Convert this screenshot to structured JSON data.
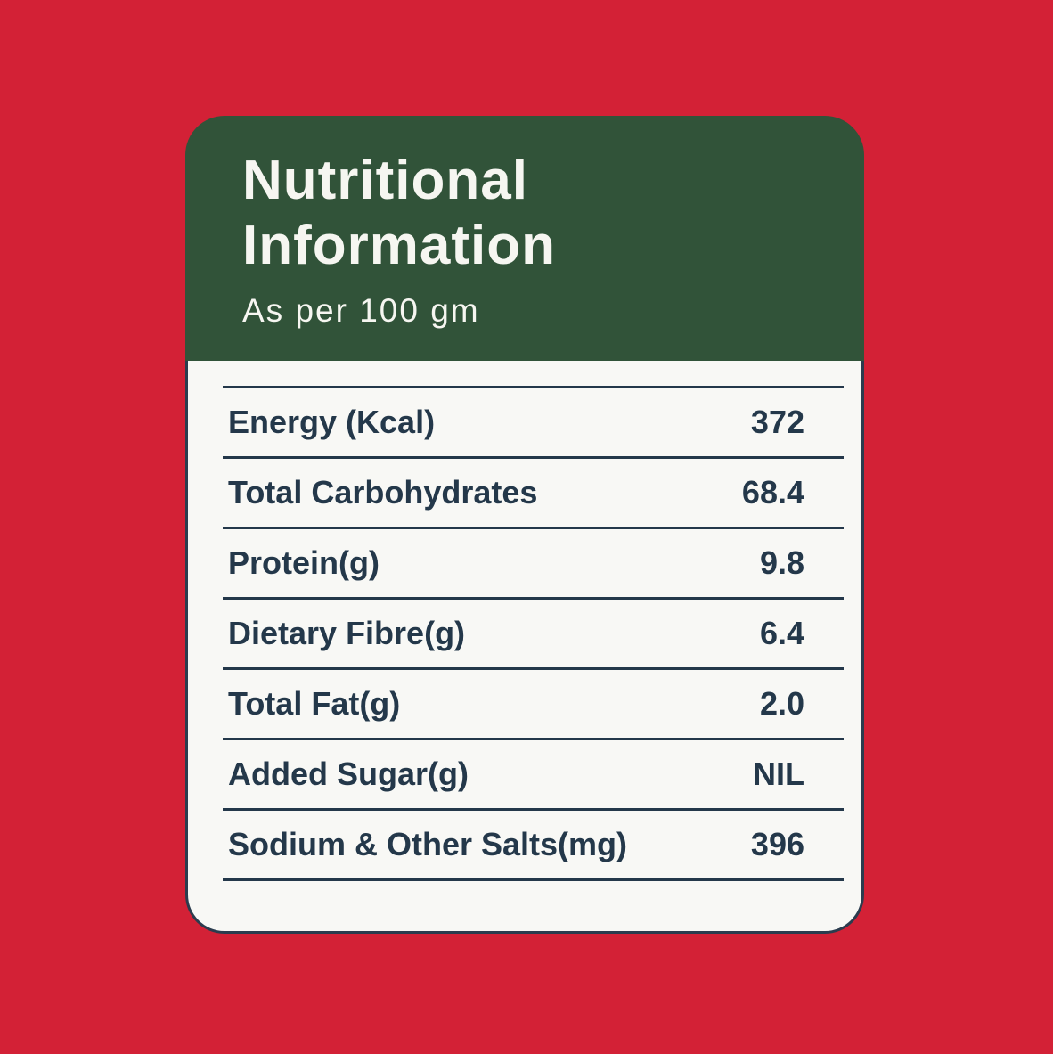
{
  "label": {
    "title_line1": "Nutritional",
    "title_line2": "Information",
    "subtitle": "As per 100 gm"
  },
  "nutrition": {
    "basis": "per 100 gm",
    "rows": [
      {
        "label": "Energy (Kcal)",
        "value": "372"
      },
      {
        "label": "Total Carbohydrates",
        "value": "68.4"
      },
      {
        "label": "Protein(g)",
        "value": "9.8"
      },
      {
        "label": "Dietary Fibre(g)",
        "value": "6.4"
      },
      {
        "label": "Total Fat(g)",
        "value": "2.0"
      },
      {
        "label": "Added Sugar(g)",
        "value": "NIL"
      },
      {
        "label": "Sodium & Other Salts(mg)",
        "value": "396"
      }
    ]
  },
  "colors": {
    "background_red": "#d32136",
    "header_green": "#315339",
    "text_navy": "#24384a",
    "card_white": "#f8f8f5",
    "title_white": "#f6f6f1"
  }
}
